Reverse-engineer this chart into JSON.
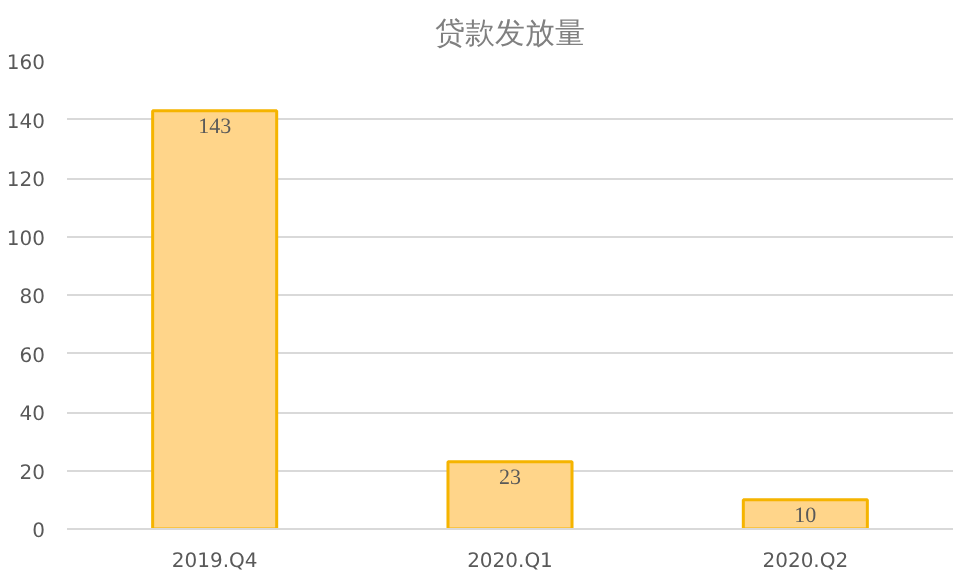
{
  "chart_data": {
    "type": "bar",
    "title": "贷款发放量",
    "categories": [
      "2019.Q4",
      "2020.Q1",
      "2020.Q2"
    ],
    "values": [
      143,
      23,
      10
    ],
    "color": "#ffd58a",
    "ylim": [
      0,
      160
    ],
    "yticks": [
      0,
      20,
      40,
      60,
      80,
      100,
      120,
      140,
      160
    ],
    "grid": "y",
    "data_labels": true
  }
}
